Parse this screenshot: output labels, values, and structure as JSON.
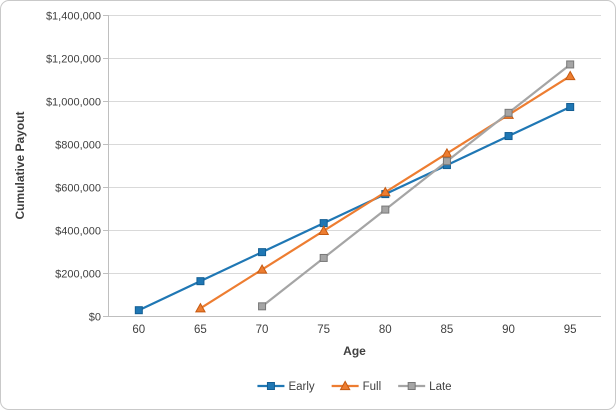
{
  "chart_data": {
    "type": "line",
    "title": "",
    "xlabel": "Age",
    "ylabel": "Cumulative Payout",
    "x": [
      60,
      65,
      70,
      75,
      80,
      85,
      90,
      95
    ],
    "xtick_labels": [
      "60",
      "65",
      "70",
      "75",
      "80",
      "85",
      "90",
      "95"
    ],
    "series": [
      {
        "name": "Early",
        "marker": "square",
        "color": "#1F77B4",
        "marker_border": "#135E93",
        "values": [
          27000,
          162000,
          297000,
          432000,
          567000,
          702000,
          837000,
          972000
        ]
      },
      {
        "name": "Full",
        "marker": "triangle",
        "color": "#ED7D31",
        "marker_border": "#C55A11",
        "values": [
          null,
          36000,
          216000,
          396000,
          576000,
          756000,
          936000,
          1116000
        ]
      },
      {
        "name": "Late",
        "marker": "square",
        "color": "#A5A5A5",
        "marker_border": "#787878",
        "values": [
          null,
          null,
          45000,
          270000,
          495000,
          720000,
          945000,
          1170000
        ]
      }
    ],
    "ylim": [
      0,
      1400000
    ],
    "ytick_step": 200000,
    "ytick_labels": [
      "$0",
      "$200,000",
      "$400,000",
      "$600,000",
      "$800,000",
      "$1,000,000",
      "$1,200,000",
      "$1,400,000"
    ],
    "grid": "horizontal",
    "legend_position": "bottom",
    "legend": [
      "Early",
      "Full",
      "Late"
    ]
  },
  "colors": {
    "background": "#FFFFFF",
    "frame_border": "#C9C9C9",
    "gridline": "#D9D9D9",
    "axis_line": "#BFBFBF",
    "tick_mark": "#BFBFBF",
    "text": "#3F3F3F"
  }
}
